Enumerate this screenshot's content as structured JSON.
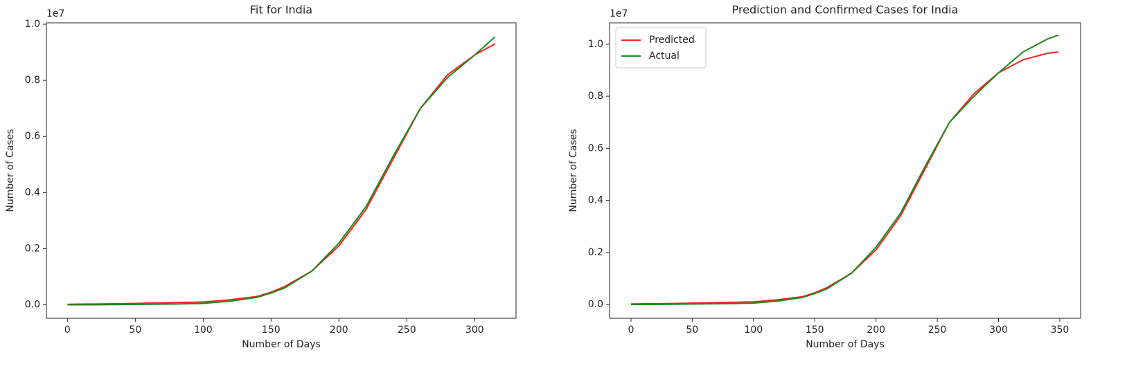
{
  "chart_data": [
    {
      "type": "line",
      "title": "Fit for India",
      "x_label": "Number of Days",
      "y_label": "Number of Cases",
      "y_offset": "1e7",
      "x": [
        0,
        20,
        40,
        60,
        80,
        100,
        120,
        140,
        150,
        160,
        180,
        200,
        220,
        240,
        260,
        280,
        300,
        315
      ],
      "series": [
        {
          "color": "#ff2020",
          "values": [
            0.002,
            0.003,
            0.004,
            0.006,
            0.008,
            0.01,
            0.018,
            0.03,
            0.045,
            0.065,
            0.12,
            0.21,
            0.34,
            0.52,
            0.7,
            0.82,
            0.89,
            0.93
          ]
        },
        {
          "color": "#1a8a1a",
          "values": [
            0.0,
            0.0,
            0.001,
            0.002,
            0.003,
            0.005,
            0.013,
            0.027,
            0.042,
            0.06,
            0.12,
            0.22,
            0.35,
            0.53,
            0.7,
            0.81,
            0.89,
            0.955
          ]
        }
      ],
      "xlim": [
        -15.5,
        330.5
      ],
      "xticks": [
        0,
        50,
        100,
        150,
        200,
        250,
        300
      ],
      "ylim": [
        -0.048,
        1.005
      ],
      "yticks": [
        {
          "value": 0,
          "label": "0.0"
        },
        0.2,
        0.4,
        0.6,
        0.8,
        {
          "value": 1,
          "label": "1.0"
        }
      ]
    },
    {
      "type": "line",
      "title": "Prediction and Confirmed Cases for India",
      "x_label": "Number of Days",
      "y_label": "Number of Cases",
      "y_offset": "1e7",
      "legend": "upper left",
      "x": [
        0,
        20,
        40,
        60,
        80,
        100,
        120,
        140,
        150,
        160,
        180,
        200,
        220,
        240,
        260,
        280,
        300,
        320,
        340,
        349
      ],
      "series": [
        {
          "name": "Predicted",
          "color": "#ff2020",
          "values": [
            0.002,
            0.003,
            0.004,
            0.006,
            0.008,
            0.01,
            0.018,
            0.03,
            0.045,
            0.065,
            0.12,
            0.21,
            0.34,
            0.52,
            0.7,
            0.81,
            0.89,
            0.94,
            0.965,
            0.97
          ]
        },
        {
          "name": "Actual",
          "color": "#1a8a1a",
          "values": [
            0.0,
            0.0,
            0.001,
            0.002,
            0.003,
            0.005,
            0.013,
            0.027,
            0.042,
            0.06,
            0.12,
            0.22,
            0.35,
            0.53,
            0.7,
            0.8,
            0.89,
            0.97,
            1.02,
            1.035
          ]
        }
      ],
      "xlim": [
        -17.5,
        367
      ],
      "xticks": [
        0,
        50,
        100,
        150,
        200,
        250,
        300,
        350
      ],
      "ylim": [
        -0.053,
        1.082
      ],
      "yticks": [
        {
          "value": 0,
          "label": "0.0"
        },
        0.2,
        0.4,
        0.6,
        0.8,
        {
          "value": 1,
          "label": "1.0"
        }
      ]
    }
  ]
}
